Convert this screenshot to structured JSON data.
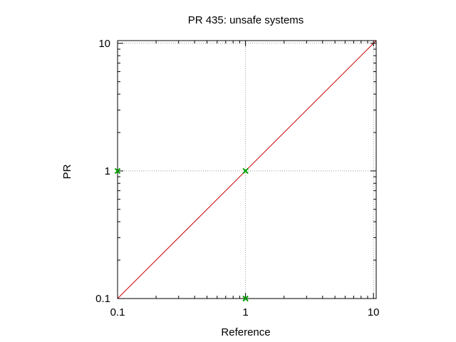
{
  "chart_data": {
    "type": "scatter",
    "title": "PR 435: unsafe systems",
    "xlabel": "Reference",
    "ylabel": "PR",
    "xscale": "log",
    "yscale": "log",
    "xlim": [
      0.1,
      10.5
    ],
    "ylim": [
      0.1,
      10.5
    ],
    "xticks": [
      0.1,
      1,
      10
    ],
    "yticks": [
      0.1,
      1,
      10
    ],
    "xtick_labels": [
      "0.1",
      "1",
      "10"
    ],
    "ytick_labels": [
      "0.1",
      "1",
      "10"
    ],
    "grid": true,
    "legend": "none",
    "points": [
      {
        "x": 0.1,
        "y": 1
      },
      {
        "x": 1,
        "y": 1
      },
      {
        "x": 1,
        "y": 0.1
      }
    ],
    "reference_line": {
      "from": [
        0.1,
        0.1
      ],
      "to": [
        10.5,
        10.5
      ]
    },
    "colors": {
      "points": "#00a000",
      "reference_line": "#cc0000",
      "grid": "#9a9a9a",
      "axes": "#000000"
    }
  }
}
